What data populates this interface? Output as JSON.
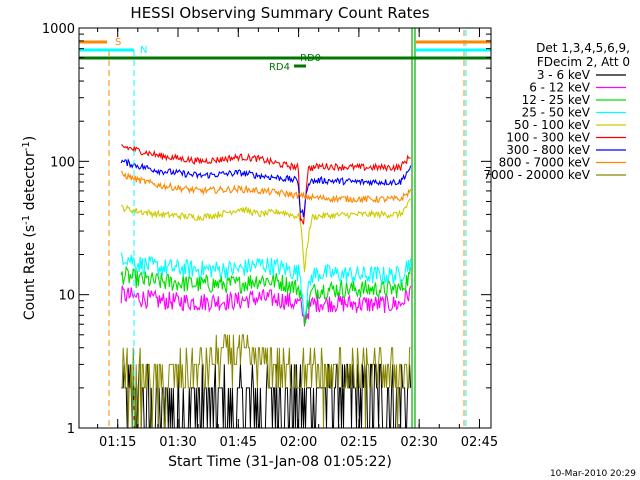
{
  "chart_data": {
    "type": "line",
    "title": "HESSI Observing Summary Count Rates",
    "xlabel": "Start Time (31-Jan-08 01:05:22)",
    "ylabel": "Count Rate (s⁻¹ detector⁻¹)",
    "ylabel_main": "Count Rate (s",
    "ylabel_sup1": "-1",
    "ylabel_mid": " detector",
    "ylabel_sup2": "-1",
    "ylabel_end": ")",
    "y_scale": "log",
    "ylim": [
      1,
      1000
    ],
    "xlim_minutes": [
      0,
      102.5
    ],
    "x_ticks": [
      {
        "minute": 9.63,
        "label": "01:15"
      },
      {
        "minute": 24.63,
        "label": "01:30"
      },
      {
        "minute": 39.63,
        "label": "01:45"
      },
      {
        "minute": 54.63,
        "label": "02:00"
      },
      {
        "minute": 69.63,
        "label": "02:15"
      },
      {
        "minute": 84.63,
        "label": "02:30"
      },
      {
        "minute": 99.63,
        "label": "02:45"
      }
    ],
    "y_ticks": [
      {
        "value": 1,
        "label": "1"
      },
      {
        "value": 10,
        "label": "10"
      },
      {
        "value": 100,
        "label": "100"
      },
      {
        "value": 1000,
        "label": "1000"
      }
    ],
    "legend": {
      "header": [
        "Det 1,3,4,5,6,9,",
        "FDecim 2, Att 0"
      ],
      "placement": "right"
    },
    "series": [
      {
        "name": "3 - 6 keV",
        "color": "#000000",
        "x": [
          10.5,
          20,
          30,
          40,
          45,
          50,
          55,
          57,
          60,
          70,
          80,
          82.5
        ],
        "values": [
          2.0,
          1.5,
          1.5,
          1.5,
          1.5,
          1.8,
          1.8,
          1.6,
          1.9,
          1.9,
          1.8,
          2.0
        ]
      },
      {
        "name": "6 - 12 keV",
        "color": "#ff00ff",
        "x": [
          10.5,
          15,
          20,
          30,
          40,
          45,
          50,
          55,
          56,
          58,
          60,
          70,
          80,
          82.5
        ],
        "values": [
          10,
          9.5,
          9,
          8.8,
          9,
          9.5,
          9.2,
          8.5,
          6.5,
          8.5,
          8.7,
          8.5,
          8.5,
          10.5
        ]
      },
      {
        "name": "12 - 25 keV",
        "color": "#00dd00",
        "x": [
          10.5,
          15,
          20,
          30,
          40,
          45,
          50,
          55,
          56,
          58,
          60,
          70,
          80,
          82.5
        ],
        "values": [
          14,
          13,
          12.5,
          12,
          12,
          13,
          12.5,
          11,
          6.5,
          10.5,
          11,
          11,
          11,
          14
        ]
      },
      {
        "name": "25 - 50 keV",
        "color": "#00ffff",
        "x": [
          10.5,
          15,
          20,
          30,
          40,
          45,
          50,
          55,
          56,
          58,
          60,
          70,
          80,
          82.5
        ],
        "values": [
          20,
          17,
          16,
          15.5,
          15.5,
          17,
          16,
          14.5,
          7,
          14,
          14.5,
          14,
          14,
          18
        ]
      },
      {
        "name": "50 - 100 keV",
        "color": "#cccc00",
        "x": [
          10.5,
          15,
          20,
          30,
          35,
          40,
          45,
          50,
          55,
          56,
          58,
          60,
          70,
          80,
          82.5
        ],
        "values": [
          45,
          42,
          40,
          38,
          40,
          44,
          40,
          42,
          38,
          14,
          38,
          39,
          40,
          40,
          50
        ]
      },
      {
        "name": "100 - 300 keV",
        "color": "#ff0000",
        "x": [
          10.5,
          15,
          20,
          30,
          35,
          40,
          45,
          50,
          54.5,
          55,
          56,
          57,
          60,
          70,
          80,
          82.5
        ],
        "values": [
          130,
          120,
          110,
          100,
          103,
          108,
          104,
          95,
          90,
          38,
          35,
          88,
          92,
          90,
          90,
          110
        ]
      },
      {
        "name": "300 - 800 keV",
        "color": "#0000ff",
        "x": [
          10.5,
          15,
          20,
          30,
          35,
          40,
          45,
          50,
          54.5,
          55,
          56,
          57,
          60,
          70,
          80,
          82.5
        ],
        "values": [
          100,
          92,
          85,
          78,
          80,
          82,
          78,
          75,
          72,
          42,
          40,
          70,
          72,
          70,
          70,
          90
        ]
      },
      {
        "name": "800 - 7000 keV",
        "color": "#ff8800",
        "x": [
          10.5,
          15,
          20,
          30,
          40,
          50,
          55,
          57,
          60,
          70,
          80,
          82.5
        ],
        "values": [
          80,
          72,
          66,
          60,
          62,
          58,
          55,
          54,
          53,
          52,
          52,
          60
        ]
      },
      {
        "name": "7000 - 20000 keV",
        "color": "#888800",
        "x": [
          10.5,
          20,
          30,
          35,
          40,
          45,
          50,
          55,
          60,
          70,
          80,
          82.5
        ],
        "values": [
          2.5,
          2.2,
          2.8,
          3.5,
          3.8,
          3.2,
          2.8,
          2.6,
          2.6,
          2.6,
          2.5,
          3.0
        ]
      }
    ],
    "annotations": [
      {
        "label": "S",
        "color": "#ff8800"
      },
      {
        "label": "N",
        "color": "#00ffff"
      },
      {
        "label": "RD0",
        "color": "#007700"
      },
      {
        "label": "RD4",
        "color": "#007700"
      }
    ],
    "footer_date": "10-Mar-2010 20:29"
  }
}
